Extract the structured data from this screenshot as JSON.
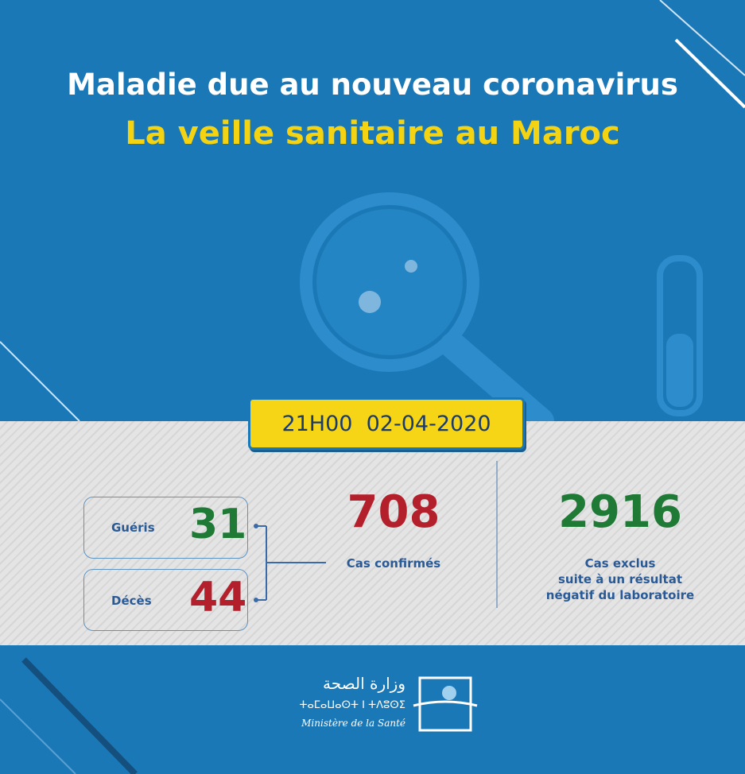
{
  "header": {
    "title": "Maladie due au nouveau coronavirus",
    "subtitle": "La veille sanitaire au Maroc"
  },
  "timestamp": "21H00  02-04-2020",
  "stats": {
    "recovered": {
      "label": "Guéris",
      "value": "31"
    },
    "deaths": {
      "label": "Décès",
      "value": "44"
    },
    "confirmed": {
      "label": "Cas confirmés",
      "value": "708"
    },
    "excluded": {
      "label_lines": [
        "Cas exclus",
        "suite à un résultat",
        "négatif du laboratoire"
      ],
      "value": "2916"
    }
  },
  "footer": {
    "arabic": "وزارة الصحة",
    "tifinagh": "ⵜⴰⵎⴰⵡⴰⵙⵜ ⵏ ⵜⴷⵓⵙⵉ",
    "french": "Ministère de la Santé"
  }
}
